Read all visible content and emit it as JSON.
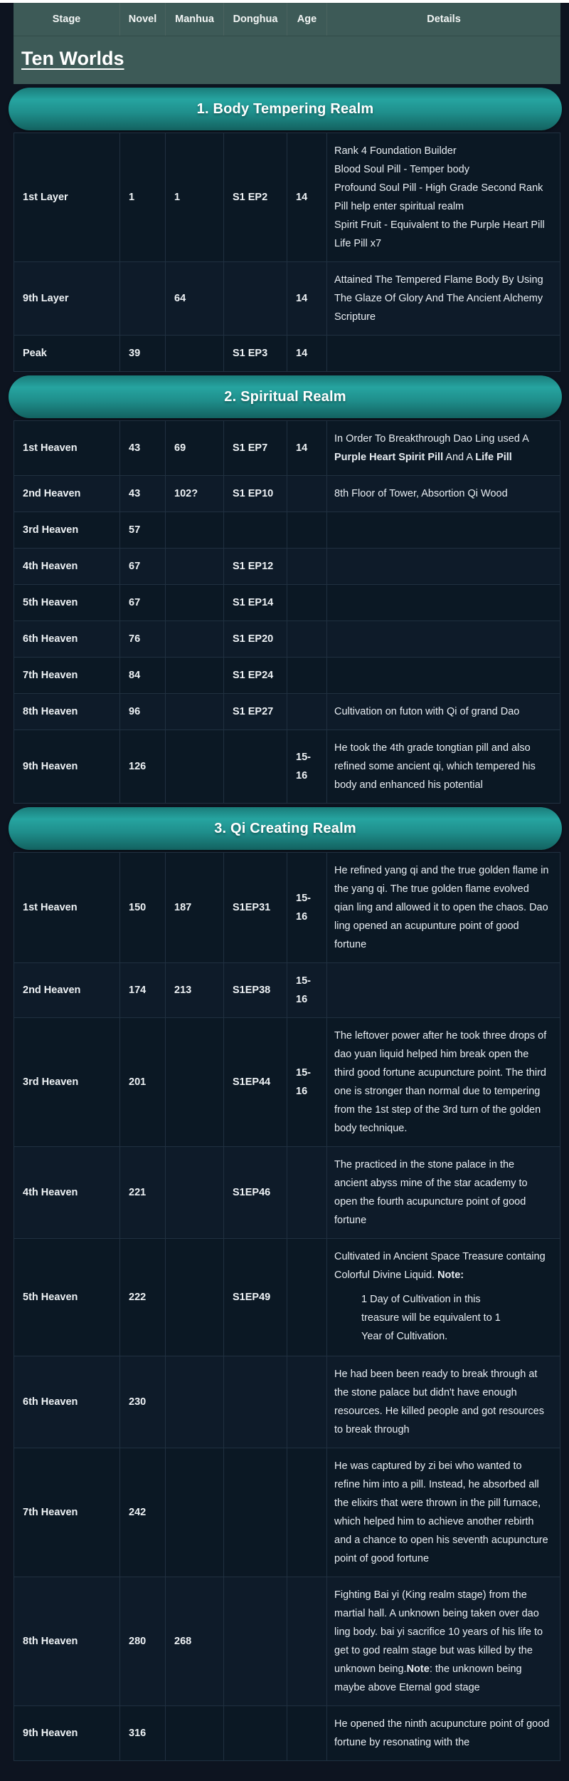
{
  "header": {
    "columns": [
      "Stage",
      "Novel",
      "Manhua",
      "Donghua",
      "Age",
      "Details"
    ]
  },
  "page_title": "Ten Worlds",
  "colors": {
    "header_bg": "#3d5a57",
    "row_bg": "#0b1824",
    "page_bg": "#0d1420",
    "grid_line": "#203040",
    "banner_gradient_top": "#26a4a0",
    "banner_gradient_bottom": "#136260",
    "text": "#ffffff"
  },
  "sections": [
    {
      "banner": "1. Body Tempering Realm",
      "rows": [
        {
          "stage": "1st Layer",
          "novel": "1",
          "manhua": "1",
          "donghua": "S1 EP2",
          "age": "14",
          "details": [
            {
              "parts": [
                {
                  "t": "Rank 4 Foundation Builder"
                }
              ]
            },
            {
              "parts": [
                {
                  "t": "Blood Soul Pill - Temper body"
                }
              ]
            },
            {
              "parts": [
                {
                  "t": "Profound Soul Pill - High Grade Second Rank Pill help enter spiritual realm"
                }
              ]
            },
            {
              "parts": [
                {
                  "t": "Spirit Fruit - Equivalent to the Purple Heart Pill"
                }
              ]
            },
            {
              "parts": [
                {
                  "t": "Life Pill x7"
                }
              ]
            }
          ]
        },
        {
          "stage": "9th Layer",
          "novel": "",
          "manhua": "64",
          "donghua": "",
          "age": "14",
          "details": [
            {
              "parts": [
                {
                  "t": "Attained The Tempered Flame Body By Using The Glaze Of Glory And The Ancient Alchemy Scripture"
                }
              ]
            }
          ]
        },
        {
          "stage": "Peak",
          "novel": "39",
          "manhua": "",
          "donghua": "S1 EP3",
          "age": "14",
          "details": []
        }
      ]
    },
    {
      "banner": "2. Spiritual Realm",
      "rows": [
        {
          "stage": "1st Heaven",
          "novel": "43",
          "manhua": "69",
          "donghua": "S1 EP7",
          "age": "14",
          "details": [
            {
              "parts": [
                {
                  "t": "In Order To Breakthrough Dao Ling used A "
                },
                {
                  "t": "Purple Heart Spirit Pill",
                  "b": true
                },
                {
                  "t": " And A "
                },
                {
                  "t": "Life Pill",
                  "b": true
                }
              ]
            }
          ]
        },
        {
          "stage": "2nd Heaven",
          "novel": "43",
          "manhua": "102?",
          "donghua": "S1 EP10",
          "age": "",
          "details": [
            {
              "parts": [
                {
                  "t": "8th Floor of Tower, Absortion Qi Wood"
                }
              ]
            }
          ]
        },
        {
          "stage": "3rd Heaven",
          "novel": "57",
          "manhua": "",
          "donghua": "",
          "age": "",
          "details": []
        },
        {
          "stage": "4th Heaven",
          "novel": "67",
          "manhua": "",
          "donghua": "S1 EP12",
          "age": "",
          "details": []
        },
        {
          "stage": "5th Heaven",
          "novel": "67",
          "manhua": "",
          "donghua": "S1 EP14",
          "age": "",
          "details": []
        },
        {
          "stage": "6th Heaven",
          "novel": "76",
          "manhua": "",
          "donghua": "S1 EP20",
          "age": "",
          "details": []
        },
        {
          "stage": "7th Heaven",
          "novel": "84",
          "manhua": "",
          "donghua": "S1 EP24",
          "age": "",
          "details": []
        },
        {
          "stage": "8th Heaven",
          "novel": "96",
          "manhua": "",
          "donghua": "S1 EP27",
          "age": "",
          "details": [
            {
              "parts": [
                {
                  "t": "Cultivation on futon with Qi of grand Dao"
                }
              ]
            }
          ]
        },
        {
          "stage": "9th Heaven",
          "novel": "126",
          "manhua": "",
          "donghua": "",
          "age": "15-16",
          "details": [
            {
              "parts": [
                {
                  "t": "He took the 4th grade tongtian pill and also refined some ancient qi, which tempered his body and enhanced his potential"
                }
              ]
            }
          ]
        }
      ]
    },
    {
      "banner": "3. Qi Creating Realm",
      "rows": [
        {
          "stage": "1st Heaven",
          "novel": "150",
          "manhua": "187",
          "donghua": "S1EP31",
          "age": "15-16",
          "details": [
            {
              "parts": [
                {
                  "t": "He refined yang qi and the true golden flame in the yang qi. The true golden flame evolved qian ling and allowed it to open the chaos. Dao ling opened an acupunture point of good fortune"
                }
              ]
            }
          ]
        },
        {
          "stage": "2nd Heaven",
          "novel": "174",
          "manhua": "213",
          "donghua": "S1EP38",
          "age": "15-16",
          "details": []
        },
        {
          "stage": "3rd Heaven",
          "novel": "201",
          "manhua": "",
          "donghua": "S1EP44",
          "age": "15-16",
          "details": [
            {
              "parts": [
                {
                  "t": "The leftover power after he took three drops of dao yuan liquid helped him break open the third good fortune acupuncture point. The third one is stronger than normal due to tempering from the 1st step of the 3rd turn of the golden body technique."
                }
              ]
            }
          ]
        },
        {
          "stage": "4th Heaven",
          "novel": "221",
          "manhua": "",
          "donghua": "S1EP46",
          "age": "",
          "details": [
            {
              "parts": [
                {
                  "t": "The practiced in the stone palace in the ancient abyss mine of the star academy to open the fourth acupuncture point of good fortune"
                }
              ]
            }
          ]
        },
        {
          "stage": "5th Heaven",
          "novel": "222",
          "manhua": "",
          "donghua": "S1EP49",
          "age": "",
          "details": [
            {
              "parts": [
                {
                  "t": "Cultivated in Ancient Space Treasure containg Colorful Divine Liquid. "
                },
                {
                  "t": "Note:",
                  "b": true
                }
              ]
            },
            {
              "parts": [
                {
                  "t": "1 Day of Cultivation in this treasure will be equivalent to 1 Year of Cultivation."
                }
              ],
              "indent": true
            }
          ]
        },
        {
          "stage": "6th Heaven",
          "novel": "230",
          "manhua": "",
          "donghua": "",
          "age": "",
          "details": [
            {
              "parts": [
                {
                  "t": "He had been been ready to break through at the stone palace but didn't have enough resources. He killed people and got resources to break through"
                }
              ]
            }
          ]
        },
        {
          "stage": "7th Heaven",
          "novel": "242",
          "manhua": "",
          "donghua": "",
          "age": "",
          "details": [
            {
              "parts": [
                {
                  "t": "He was captured by zi bei who wanted to refine him into a pill. Instead, he absorbed all the elixirs that were thrown in the pill furnace, which helped him to achieve another rebirth and a chance to open his seventh acupuncture point of good fortune"
                }
              ]
            }
          ]
        },
        {
          "stage": "8th Heaven",
          "novel": "280",
          "manhua": "268",
          "donghua": "",
          "age": "",
          "details": [
            {
              "parts": [
                {
                  "t": "Fighting Bai yi (King realm stage) from the martial hall. A unknown being taken over dao ling body. bai yi sacrifice 10 years of his life to get to god realm stage but was killed by the unknown being."
                },
                {
                  "t": "Note",
                  "b": true
                },
                {
                  "t": ": the unknown being maybe above Eternal god stage"
                }
              ]
            }
          ]
        },
        {
          "stage": "9th Heaven",
          "novel": "316",
          "manhua": "",
          "donghua": "",
          "age": "",
          "details": [
            {
              "parts": [
                {
                  "t": "He opened the ninth acupuncture point of good fortune by resonating with the"
                }
              ]
            }
          ]
        }
      ]
    }
  ]
}
